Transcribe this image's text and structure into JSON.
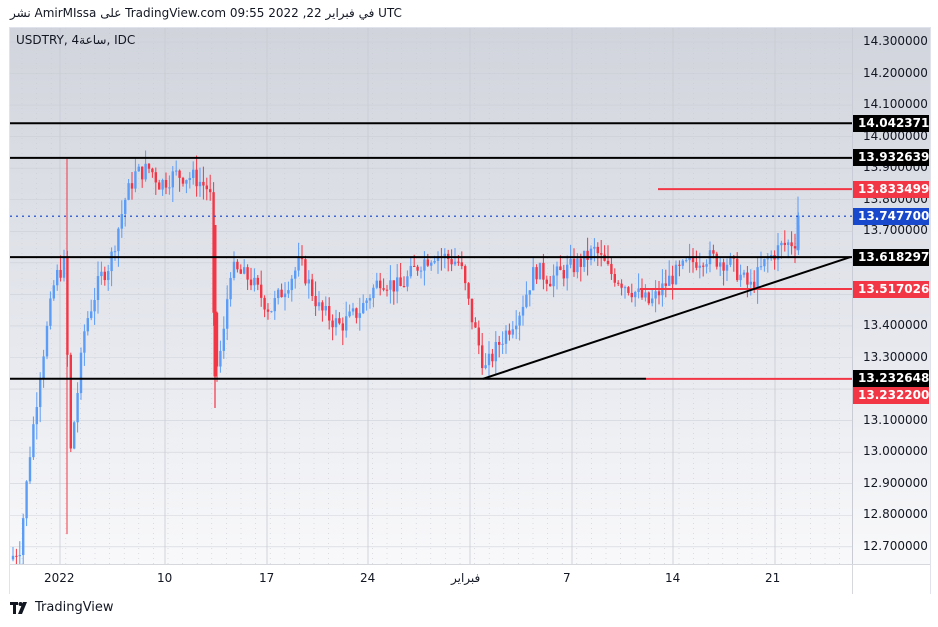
{
  "header": {
    "published_text": "نشر AmirMIssa على TradingView.com 09:55 2022 ,22 في فبراير UTC"
  },
  "chart": {
    "symbol_line": "USDTRY, 4ساعة, IDC"
  },
  "footer": {
    "brand": "TradingView"
  },
  "colors": {
    "up": "#5b9cf6",
    "down": "#f23645",
    "level_black": "#000000",
    "level_red": "#f23645",
    "last_price": "#1848cc"
  },
  "price_axis": {
    "ticks": [
      "14.300000",
      "14.200000",
      "14.100000",
      "14.000000",
      "13.900000",
      "13.800000",
      "13.700000",
      "13.400000",
      "13.300000",
      "13.100000",
      "13.000000",
      "12.900000",
      "12.800000",
      "12.700000"
    ],
    "tags": [
      {
        "value": "14.042371",
        "color": "#000000"
      },
      {
        "value": "13.932639",
        "color": "#000000"
      },
      {
        "value": "13.833499",
        "color": "#f23645"
      },
      {
        "value": "13.747700",
        "color": "#1848cc"
      },
      {
        "value": "13.618297",
        "color": "#000000"
      },
      {
        "value": "13.517026",
        "color": "#f23645"
      },
      {
        "value": "13.232648",
        "color": "#000000"
      },
      {
        "value": "13.232200",
        "color": "#f23645"
      }
    ]
  },
  "time_axis": {
    "labels": [
      "2022",
      "10",
      "17",
      "24",
      "فبراير",
      "7",
      "14",
      "21"
    ]
  },
  "chart_data": {
    "type": "candlestick",
    "title": "USDTRY, 4H, IDC",
    "xlabel": "",
    "ylabel": "",
    "ylim": [
      12.66,
      14.34
    ],
    "x_ticks": [
      "2022",
      "10",
      "17",
      "24",
      "فبراير",
      "7",
      "14",
      "21"
    ],
    "y_ticks": [
      14.3,
      14.2,
      14.1,
      14.0,
      13.9,
      13.8,
      13.7,
      13.6,
      13.5,
      13.4,
      13.3,
      13.2,
      13.1,
      13.0,
      12.9,
      12.8,
      12.7
    ],
    "last_price": 13.7477,
    "horizontal_levels": [
      {
        "value": 14.042371,
        "color": "black",
        "from": "start"
      },
      {
        "value": 13.932639,
        "color": "black",
        "from": "start"
      },
      {
        "value": 13.833499,
        "color": "red",
        "from": "Feb 14"
      },
      {
        "value": 13.618297,
        "color": "black",
        "from": "start"
      },
      {
        "value": 13.517026,
        "color": "red",
        "from": "Feb 12"
      },
      {
        "value": 13.232648,
        "color": "black",
        "from": "start",
        "to": "Feb 11"
      },
      {
        "value": 13.2322,
        "color": "red",
        "from": "Feb 11"
      }
    ],
    "trendline": {
      "from": {
        "date": "Jan 31",
        "value": 13.2326
      },
      "to": {
        "date": "Feb 24",
        "value": 13.618
      }
    },
    "series_summary": [
      {
        "date": "Jan 1",
        "approx_close": 12.68
      },
      {
        "date": "Jan 3",
        "approx_close": 13.6
      },
      {
        "date": "Jan 4",
        "approx_close": 12.95
      },
      {
        "date": "Jan 6",
        "approx_close": 13.5
      },
      {
        "date": "Jan 9",
        "approx_close": 13.88
      },
      {
        "date": "Jan 12",
        "approx_close": 13.85
      },
      {
        "date": "Jan 13",
        "approx_close": 13.2
      },
      {
        "date": "Jan 14",
        "approx_close": 13.58
      },
      {
        "date": "Jan 18",
        "approx_close": 13.5
      },
      {
        "date": "Jan 21",
        "approx_close": 13.4
      },
      {
        "date": "Jan 27",
        "approx_close": 13.62
      },
      {
        "date": "Jan 31",
        "approx_close": 13.26
      },
      {
        "date": "Feb 4",
        "approx_close": 13.57
      },
      {
        "date": "Feb 8",
        "approx_close": 13.63
      },
      {
        "date": "Feb 11",
        "approx_close": 13.45
      },
      {
        "date": "Feb 15",
        "approx_close": 13.62
      },
      {
        "date": "Feb 18",
        "approx_close": 13.52
      },
      {
        "date": "Feb 21",
        "approx_close": 13.66
      },
      {
        "date": "Feb 22",
        "approx_close": 13.7477
      }
    ]
  }
}
